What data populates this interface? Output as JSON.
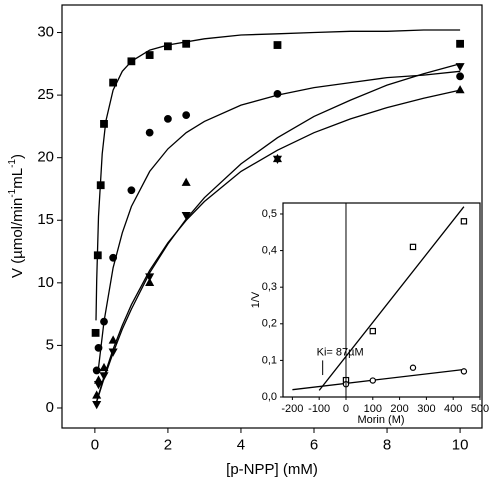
{
  "chart_data": [
    {
      "type": "scatter",
      "xlabel": "[p-NPP] (mM)",
      "ylabel": [
        {
          "text": "V (µmol/min"
        },
        {
          "text": "-1",
          "sup": true
        },
        {
          "text": "mL"
        },
        {
          "text": "-1",
          "sup": true
        },
        {
          "text": ")"
        }
      ],
      "xlim": [
        -0.9,
        10.6
      ],
      "ylim": [
        -1.6,
        32.2
      ],
      "xticks": [
        0,
        2,
        4,
        6,
        8,
        10
      ],
      "yticks": [
        0,
        5,
        10,
        15,
        20,
        25,
        30
      ],
      "series": [
        {
          "marker": "square",
          "color": "#000000",
          "x": [
            0.02,
            0.08,
            0.16,
            0.25,
            0.5,
            1,
            1.5,
            2,
            2.5,
            5,
            10
          ],
          "values": [
            6,
            12.2,
            17.8,
            22.7,
            26,
            27.7,
            28.2,
            28.9,
            29.1,
            29,
            29.1
          ]
        },
        {
          "marker": "circle",
          "color": "#000000",
          "x": [
            0.05,
            0.1,
            0.25,
            0.5,
            1,
            1.5,
            2,
            2.5,
            5,
            10
          ],
          "values": [
            3,
            4.8,
            6.9,
            12,
            17.4,
            22,
            23.1,
            23.4,
            25.1,
            26.5
          ]
        },
        {
          "marker": "triangle-up",
          "color": "#000000",
          "x": [
            0.05,
            0.1,
            0.25,
            0.5,
            1.5,
            2.5,
            5,
            10
          ],
          "values": [
            1,
            2.2,
            3.2,
            5.4,
            10,
            18,
            19.9,
            25.4
          ]
        },
        {
          "marker": "triangle-down",
          "color": "#000000",
          "x": [
            0.05,
            0.1,
            0.25,
            0.5,
            1.5,
            2.5,
            5,
            10
          ],
          "values": [
            0.3,
            1.9,
            2.6,
            4.5,
            10.5,
            15.4,
            19.9,
            27.3
          ]
        }
      ],
      "fits": [
        {
          "color": "#000000",
          "x": [
            0.03,
            0.05,
            0.1,
            0.2,
            0.3,
            0.5,
            0.75,
            1,
            1.5,
            2,
            3,
            4,
            5,
            6,
            7,
            8,
            9,
            10
          ],
          "values": [
            7,
            10.2,
            15.3,
            20.3,
            22.9,
            25.4,
            26.9,
            27.7,
            28.6,
            29,
            29.5,
            29.8,
            29.9,
            30,
            30.1,
            30.1,
            30.2,
            30.2
          ]
        },
        {
          "color": "#000000",
          "x": [
            0.1,
            0.25,
            0.5,
            0.75,
            1,
            1.5,
            2,
            2.5,
            3,
            4,
            5,
            6,
            7,
            8,
            9,
            10
          ],
          "values": [
            3.2,
            6.9,
            11.2,
            14,
            16.1,
            18.9,
            20.7,
            22,
            22.9,
            24.2,
            25,
            25.6,
            26,
            26.4,
            26.6,
            26.9
          ]
        },
        {
          "color": "#000000",
          "x": [
            0.05,
            0.25,
            0.5,
            0.75,
            1,
            1.5,
            2,
            2.5,
            3,
            4,
            5,
            6,
            7,
            8,
            9,
            10
          ],
          "values": [
            0.54,
            2.5,
            4.7,
            6.6,
            8.25,
            11,
            13.2,
            15,
            16.5,
            18.9,
            20.6,
            22,
            23.1,
            24,
            24.75,
            25.4
          ]
        },
        {
          "color": "#000000",
          "x": [
            0.05,
            0.25,
            0.5,
            0.75,
            1,
            1.5,
            2,
            2.5,
            3,
            4,
            5,
            6,
            7,
            8,
            9,
            10
          ],
          "values": [
            0.49,
            2.35,
            4.4,
            6.3,
            7.9,
            10.8,
            13.1,
            15.1,
            16.8,
            19.5,
            21.6,
            23.3,
            24.6,
            25.8,
            26.7,
            27.5
          ]
        }
      ]
    },
    {
      "type": "scatter",
      "xlabel": "Morin (M)",
      "ylabel": "1/V",
      "xlim": [
        -235,
        500
      ],
      "ylim": [
        0,
        0.53
      ],
      "xticks": [
        -200,
        -100,
        0,
        100,
        200,
        300,
        400,
        500
      ],
      "yticks": [
        {
          "value": 0,
          "label": "0,0"
        },
        {
          "value": 0.1,
          "label": "0,1"
        },
        {
          "value": 0.2,
          "label": "0,2"
        },
        {
          "value": 0.3,
          "label": "0,3"
        },
        {
          "value": 0.4,
          "label": "0,4"
        },
        {
          "value": 0.5,
          "label": "0,5"
        }
      ],
      "series": [
        {
          "marker": "open-square",
          "color": "#000000",
          "x": [
            0,
            100,
            250,
            440
          ],
          "values": [
            0.046,
            0.18,
            0.41,
            0.48
          ]
        },
        {
          "marker": "open-circle",
          "color": "#000000",
          "x": [
            0,
            100,
            250,
            440
          ],
          "values": [
            0.035,
            0.045,
            0.08,
            0.07
          ]
        }
      ],
      "fits": [
        {
          "color": "#000000",
          "x": [
            -100,
            440
          ],
          "values": [
            0.018,
            0.52
          ]
        },
        {
          "color": "#000000",
          "x": [
            -200,
            440
          ],
          "values": [
            0.02,
            0.075
          ]
        }
      ],
      "annotation": {
        "text": "Ki= 87µM",
        "x": -87,
        "ylim": [
          0.06,
          0.1
        ]
      }
    }
  ]
}
